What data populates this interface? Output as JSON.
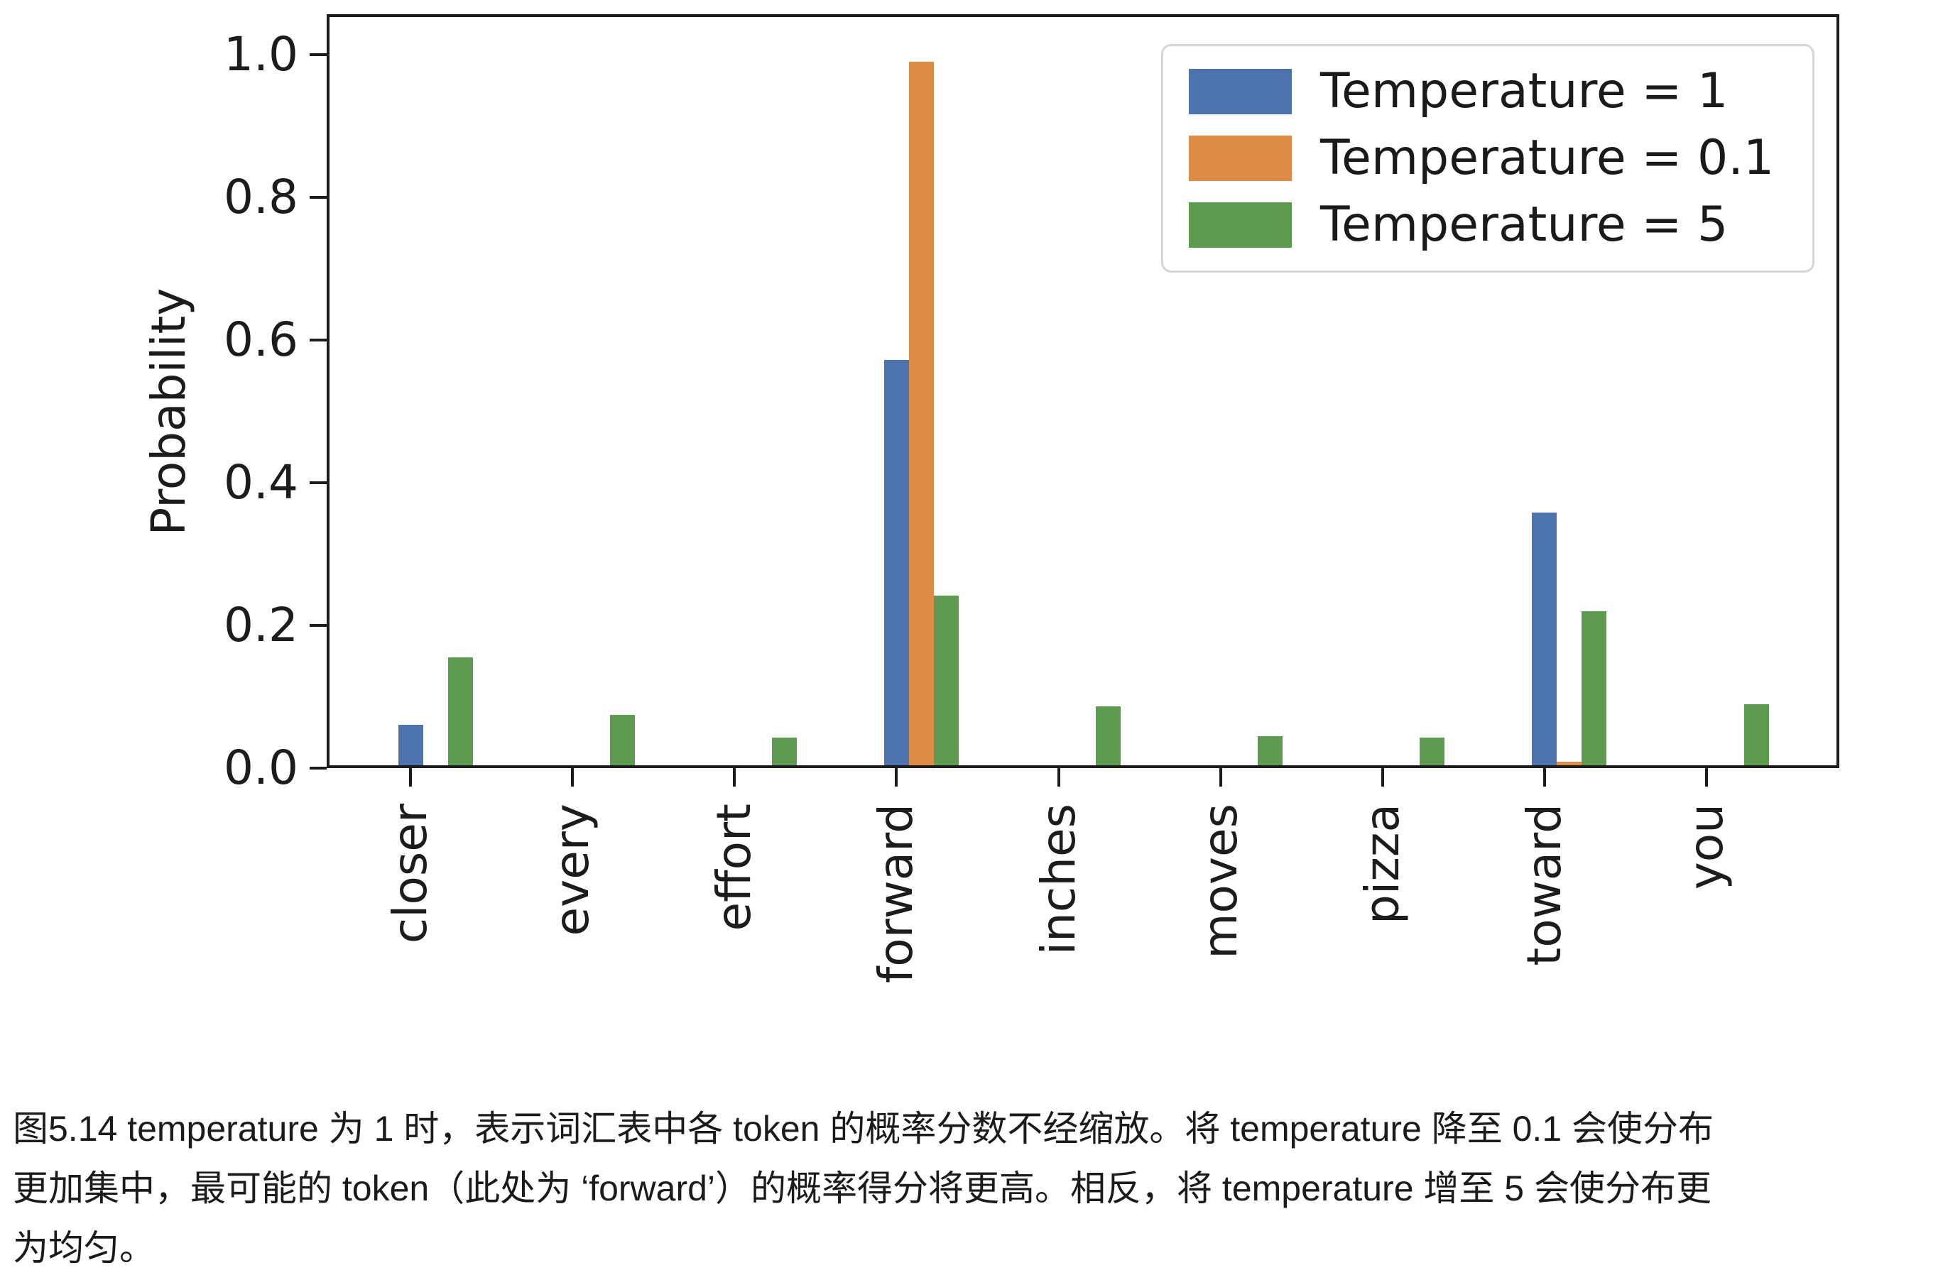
{
  "figure": {
    "caption_lines": [
      "图5.14 temperature 为 1 时，表示词汇表中各 token 的概率分数不经缩放。将 temperature 降至 0.1 会使分布",
      "更加集中，最可能的 token（此处为 ‘forward’）的概率得分将更高。相反，将 temperature 增至 5 会使分布更",
      "为均匀。"
    ]
  },
  "chart_data": {
    "type": "bar",
    "title": "",
    "xlabel": "",
    "ylabel": "Probability",
    "categories": [
      "closer",
      "every",
      "effort",
      "forward",
      "inches",
      "moves",
      "pizza",
      "toward",
      "you"
    ],
    "series": [
      {
        "name": "Temperature = 1",
        "color": "#4C72B0",
        "values": [
          0.061,
          0.002,
          0.0,
          0.572,
          0.003,
          0.0,
          0.0,
          0.358,
          0.004
        ]
      },
      {
        "name": "Temperature = 0.1",
        "color": "#DF8A45",
        "values": [
          0.0,
          0.0,
          0.0,
          0.99,
          0.0,
          0.0,
          0.0,
          0.009,
          0.0
        ]
      },
      {
        "name": "Temperature = 5",
        "color": "#5C9B50",
        "values": [
          0.155,
          0.075,
          0.043,
          0.242,
          0.087,
          0.045,
          0.043,
          0.22,
          0.09
        ]
      }
    ],
    "ylim": [
      0,
      1.057
    ],
    "yticks": [
      0,
      0.2,
      0.4,
      0.6,
      0.8,
      1.0
    ],
    "ytick_labels": [
      "0.0",
      "0.2",
      "0.4",
      "0.6",
      "0.8",
      "1.0"
    ],
    "grid": false,
    "legend_position": "upper right",
    "axis_color": "#1c1c1c"
  }
}
